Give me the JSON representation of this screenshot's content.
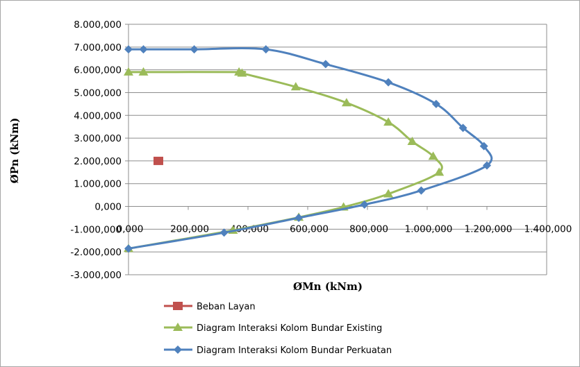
{
  "chart_data": {
    "type": "scatter",
    "xlabel": "ØMn (kNm)",
    "ylabel": "ØPn (kNm)",
    "xlim": [
      0,
      1400000
    ],
    "ylim": [
      -3000000,
      8000000
    ],
    "x_ticks": [
      0,
      200000,
      400000,
      600000,
      800000,
      1000000,
      1200000,
      1400000
    ],
    "x_tick_labels": [
      "0,000",
      "200,000",
      "400,000",
      "600,000",
      "800,000",
      "1.000,000",
      "1.200,000",
      "1.400,000"
    ],
    "y_ticks": [
      8000000,
      7000000,
      6000000,
      5000000,
      4000000,
      3000000,
      2000000,
      1000000,
      0,
      -1000000,
      -2000000,
      -3000000
    ],
    "y_tick_labels": [
      "8.000,000",
      "7.000,000",
      "6.000,000",
      "5.000,000",
      "4.000,000",
      "3.000,000",
      "2.000,000",
      "1.000,000",
      "0,000",
      "-1.000,000",
      "-2.000,000",
      "-3.000,000"
    ],
    "grid": "horizontal",
    "legend_position": "bottom-left",
    "series": [
      {
        "name": "Beban Layan",
        "color": "#c0504d",
        "marker": "square",
        "line": false,
        "points": [
          [
            100000,
            2000000
          ]
        ]
      },
      {
        "name": "Diagram Interaksi Kolom Bundar Existing",
        "color": "#9bbb59",
        "marker": "triangle",
        "line": true,
        "points": [
          [
            0,
            5900000
          ],
          [
            50000,
            5900000
          ],
          [
            370000,
            5900000
          ],
          [
            380000,
            5850000
          ],
          [
            560000,
            5250000
          ],
          [
            730000,
            4550000
          ],
          [
            870000,
            3700000
          ],
          [
            950000,
            2850000
          ],
          [
            1020000,
            2200000
          ],
          [
            1040000,
            1500000
          ],
          [
            870000,
            550000
          ],
          [
            720000,
            -30000
          ],
          [
            570000,
            -480000
          ],
          [
            350000,
            -1050000
          ],
          [
            0,
            -1850000
          ]
        ]
      },
      {
        "name": "Diagram Interaksi Kolom Bundar Perkuatan",
        "color": "#4f81bd",
        "marker": "diamond",
        "line": true,
        "points": [
          [
            0,
            6900000
          ],
          [
            50000,
            6900000
          ],
          [
            220000,
            6900000
          ],
          [
            460000,
            6900000
          ],
          [
            660000,
            6250000
          ],
          [
            870000,
            5450000
          ],
          [
            1030000,
            4500000
          ],
          [
            1120000,
            3450000
          ],
          [
            1190000,
            2650000
          ],
          [
            1200000,
            1800000
          ],
          [
            980000,
            700000
          ],
          [
            790000,
            80000
          ],
          [
            570000,
            -500000
          ],
          [
            320000,
            -1150000
          ],
          [
            0,
            -1850000
          ]
        ]
      }
    ]
  }
}
